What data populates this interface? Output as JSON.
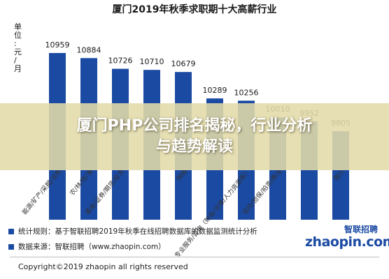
{
  "chart_data": {
    "type": "bar",
    "title": "厦门2019年秋季求职期十大高薪行业",
    "ylabel": "单位：元/月",
    "categories": [
      "能源/矿产/采掘/冶炼",
      "农/林/牧/渔",
      "基金/证券/期货/投资",
      "",
      "网络",
      "",
      "专业服务/咨询（财会/法律/人力资源等）",
      "信托/担保/拍卖/典当",
      "",
      "银行"
    ],
    "values": [
      10959,
      10884,
      10726,
      10710,
      10679,
      10289,
      10256,
      10010,
      9952,
      9805
    ],
    "ylim": [
      8500,
      11500
    ],
    "grid": false,
    "bar_color": "#1b4aa3"
  },
  "banner": {
    "line1": "厦门PHP公司排名揭秘，行业分析",
    "line2": "与趋势解读"
  },
  "footer": {
    "rule_note": "统计规则：基于智联招聘2019年秋季在线招聘数据库的数据监测统计分析",
    "source_note": "数据来源：智联招聘（www.zhaopin.com）",
    "copyright": "Copyright©2019 zhaopin all rights reserved",
    "logo_cn": "智联招聘",
    "logo_en": "zhaopin.com"
  }
}
